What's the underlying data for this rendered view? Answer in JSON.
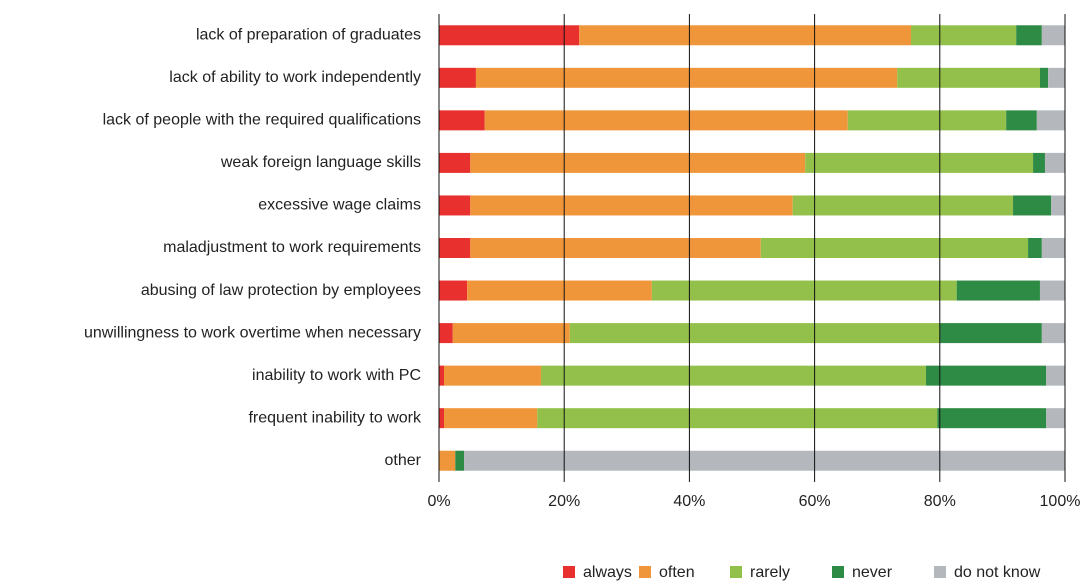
{
  "chart_data": {
    "type": "stacked-bar-horizontal",
    "categories": [
      "lack of preparation of graduates",
      "lack of ability to work independently",
      "lack of people with the required qualifications",
      "weak foreign language skills",
      "excessive wage claims",
      "maladjustment to work requirements",
      "abusing of law protection by employees",
      "unwillingness to work overtime when necessary",
      "inability to work with PC",
      "frequent inability to work",
      "other"
    ],
    "series": [
      {
        "name": "always",
        "color": "#e8312f",
        "values": [
          22.4,
          5.9,
          7.3,
          5.0,
          5.0,
          5.0,
          4.5,
          2.2,
          0.8,
          0.8,
          0
        ]
      },
      {
        "name": "often",
        "color": "#f0963a",
        "values": [
          53.0,
          67.3,
          58.0,
          53.5,
          51.5,
          46.4,
          29.5,
          18.7,
          15.5,
          14.9,
          2.6
        ]
      },
      {
        "name": "rarely",
        "color": "#92c04a",
        "values": [
          16.8,
          22.8,
          25.3,
          36.4,
          35.2,
          42.7,
          48.7,
          59.1,
          61.5,
          63.9,
          0
        ]
      },
      {
        "name": "never",
        "color": "#2e8b45",
        "values": [
          4.1,
          1.3,
          4.9,
          1.9,
          6.1,
          2.2,
          13.3,
          16.3,
          19.2,
          17.4,
          1.4
        ]
      },
      {
        "name": "do not know",
        "color": "#b4b8bc",
        "values": [
          3.7,
          2.7,
          4.5,
          3.2,
          2.2,
          3.7,
          4.0,
          3.7,
          3.0,
          3.0,
          96.0
        ]
      }
    ],
    "xlim": [
      0,
      100
    ],
    "xticks": [
      {
        "value": 0,
        "label": "0%"
      },
      {
        "value": 20,
        "label": "20%"
      },
      {
        "value": 40,
        "label": "40%"
      },
      {
        "value": 60,
        "label": "60%"
      },
      {
        "value": 80,
        "label": "80%"
      },
      {
        "value": 100,
        "label": "100%"
      }
    ],
    "grid": true,
    "legend": "bottom-right"
  }
}
